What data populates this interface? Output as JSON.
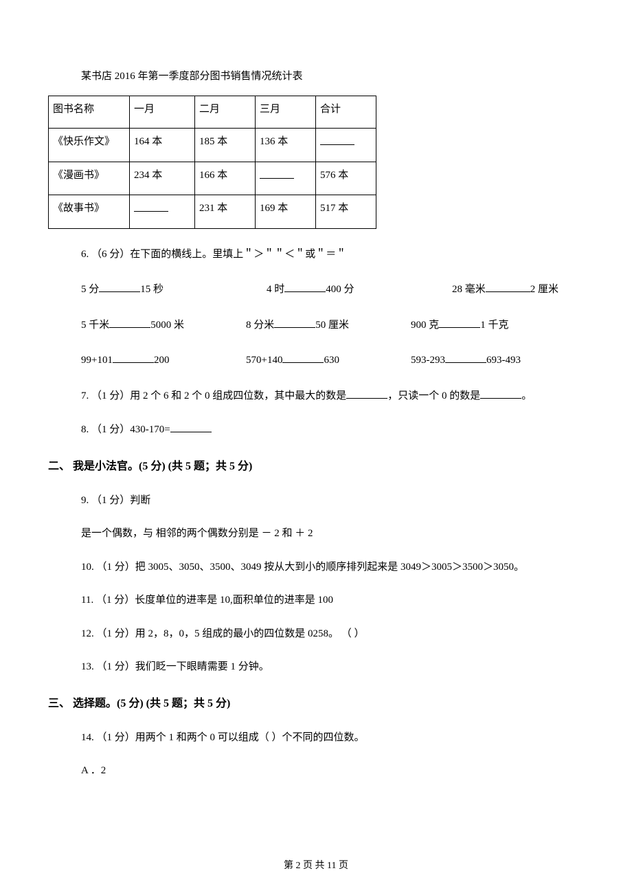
{
  "table_caption": "某书店 2016 年第一季度部分图书销售情况统计表",
  "table": {
    "headers": [
      "图书名称",
      "一月",
      "二月",
      "三月",
      "合计"
    ],
    "rows": [
      {
        "name": "《快乐作文》",
        "jan": "164 本",
        "feb": "185 本",
        "mar": "136 本",
        "total": ""
      },
      {
        "name": "《漫画书》",
        "jan": "234 本",
        "feb": "166 本",
        "mar": "",
        "total": "576 本"
      },
      {
        "name": "《故事书》",
        "jan": "",
        "feb": "231 本",
        "mar": "169 本",
        "total": "517 本"
      }
    ]
  },
  "q6": {
    "prompt": "6. （6 分）在下面的横线上。里填上＂＞＂＂＜＂或＂＝＂",
    "row1": {
      "a_l": "5 分",
      "a_r": "15 秒",
      "b_l": "4 时",
      "b_r": "400 分",
      "c_l": "28 毫米",
      "c_r": "2 厘米"
    },
    "row2": {
      "a_l": "5 千米",
      "a_r": "5000 米",
      "b_l": "8 分米",
      "b_r": "50 厘米",
      "c_l": "900 克",
      "c_r": "1 千克"
    },
    "row3": {
      "a_l": "99+101",
      "a_r": "200",
      "b_l": "570+140",
      "b_r": "630",
      "c_l": "593-293",
      "c_r": "693-493"
    }
  },
  "q7": {
    "pre": "7. （1 分）用 2 个 6 和 2 个 0 组成四位数，其中最大的数是",
    "mid": "，只读一个 0 的数是",
    "post": "。"
  },
  "q8": {
    "text": "8. （1 分）430-170="
  },
  "section2": "二、 我是小法官。(5 分)  (共 5 题；共 5 分)",
  "q9": {
    "line1": "9. （1 分）判断",
    "line2": "是一个偶数，与 相邻的两个偶数分别是 － 2 和 ＋ 2"
  },
  "q10": "10. （1 分）把 3005、3050、3500、3049 按从大到小的顺序排列起来是 3049＞3005＞3500＞3050。",
  "q11": "11. （1 分）长度单位的进率是 10,面积单位的进率是 100",
  "q12": "12. （1 分）用 2，8，0，5 组成的最小的四位数是 0258。 （    ）",
  "q13": "13. （1 分）我们眨一下眼睛需要 1 分钟。",
  "section3": "三、 选择题。(5 分)  (共 5 题；共 5 分)",
  "q14": "14. （1 分）用两个 1 和两个 0 可以组成（    ）个不同的四位数。",
  "q14a": "A ．2",
  "footer": "第 2 页 共 11 页"
}
